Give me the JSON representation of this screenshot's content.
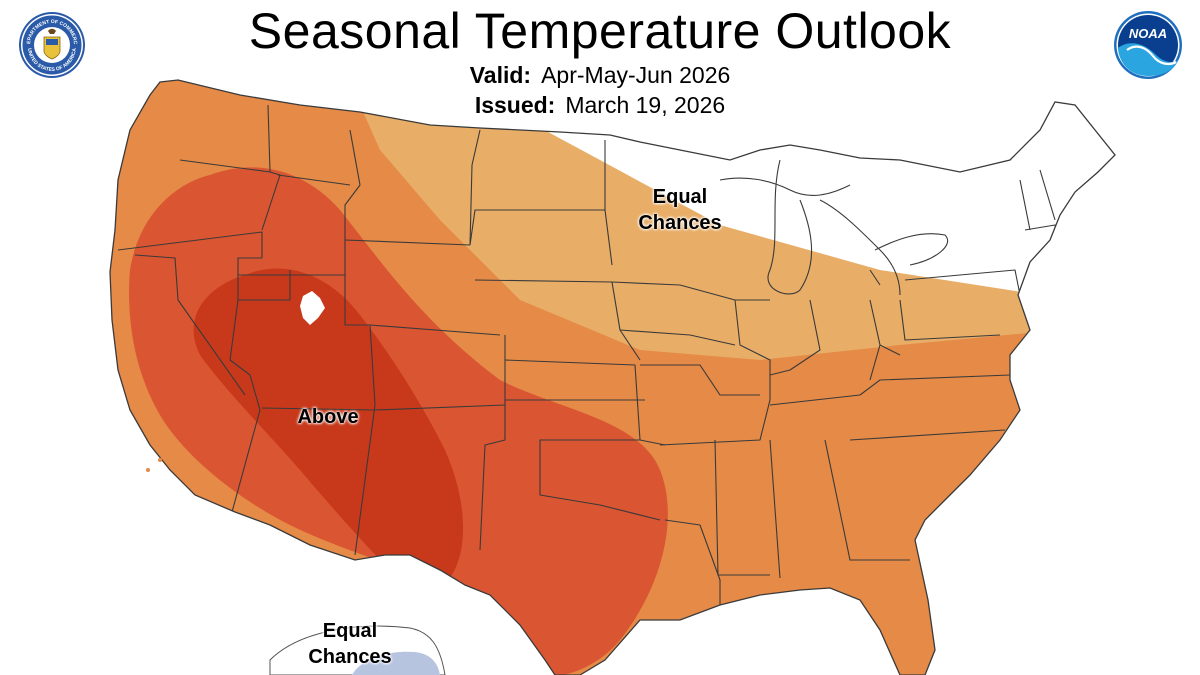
{
  "title": "Seasonal Temperature Outlook",
  "valid": {
    "label": "Valid:",
    "value": "Apr-May-Jun 2026"
  },
  "issued": {
    "label": "Issued:",
    "value": "March 19, 2026"
  },
  "labels": {
    "equal_chances_north": [
      "Equal",
      "Chances"
    ],
    "above": "Above",
    "equal_chances_south": [
      "Equal",
      "Chances"
    ]
  },
  "logos": {
    "commerce": {
      "name": "commerce-seal",
      "top_text": "DEPARTMENT OF COMMERCE",
      "bottom_text": "UNITED STATES OF AMERICA"
    },
    "noaa": {
      "name": "noaa-logo",
      "text": "NOAA"
    }
  },
  "colors": {
    "above_33_40": "#e8ad67",
    "above_40_50": "#e58a47",
    "above_50_60": "#da5531",
    "above_60_70": "#c8391c",
    "equal_chances": "#ffffff",
    "below_33_40": "#b6c4e0",
    "state_lines": "#3a3a3a"
  }
}
